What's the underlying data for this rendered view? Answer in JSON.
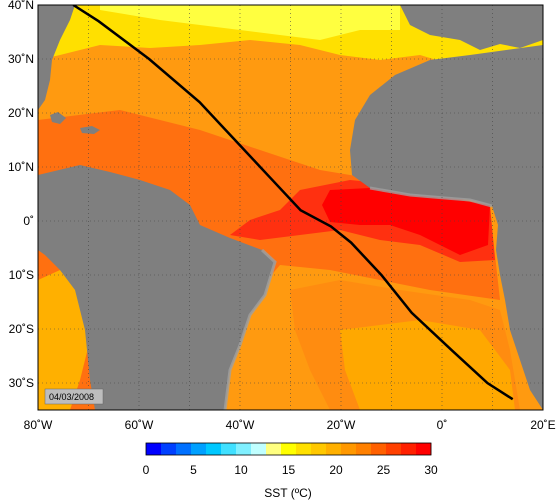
{
  "map": {
    "date_stamp": "04/03/2008",
    "lon_labels": [
      "80˚W",
      "60˚W",
      "40˚W",
      "20˚W",
      "0˚",
      "20˚E"
    ],
    "lat_labels": [
      "40˚N",
      "30˚N",
      "20˚N",
      "10˚N",
      "0˚",
      "10˚S",
      "20˚S",
      "30˚S"
    ],
    "extent": {
      "lon_min": -80,
      "lon_max": 20,
      "lat_min": -35,
      "lat_max": 40
    },
    "grid": true,
    "track": [
      [
        -73,
        40
      ],
      [
        -68,
        37
      ],
      [
        -58,
        30
      ],
      [
        -48,
        22
      ],
      [
        -40,
        14
      ],
      [
        -34,
        8
      ],
      [
        -28,
        2
      ],
      [
        -22,
        -1
      ],
      [
        -18,
        -4
      ],
      [
        -12,
        -10
      ],
      [
        -6,
        -17
      ],
      [
        2,
        -24
      ],
      [
        9,
        -30
      ],
      [
        14,
        -33
      ]
    ],
    "colors": {
      "land": "#7f7f7f",
      "shelf": "#a0a0a0",
      "track": "#000000",
      "ocean_zones": [
        "#ffff33",
        "#ffdd00",
        "#ffb000",
        "#ff9000",
        "#ff7000",
        "#ff4010",
        "#ff0000"
      ]
    }
  },
  "colorbar": {
    "title": "SST (ºC)",
    "ticks": [
      "0",
      "5",
      "10",
      "15",
      "20",
      "25",
      "30"
    ],
    "min": 0,
    "max": 30,
    "colors": [
      "#0000ff",
      "#0040ff",
      "#0070ff",
      "#00a0ff",
      "#00c8ff",
      "#40e0ff",
      "#80f0ff",
      "#c0ffff",
      "#ffff80",
      "#ffff00",
      "#ffe000",
      "#ffc800",
      "#ffb000",
      "#ff9800",
      "#ff8000",
      "#ff6000",
      "#ff4000",
      "#ff2000",
      "#ff0000"
    ]
  }
}
